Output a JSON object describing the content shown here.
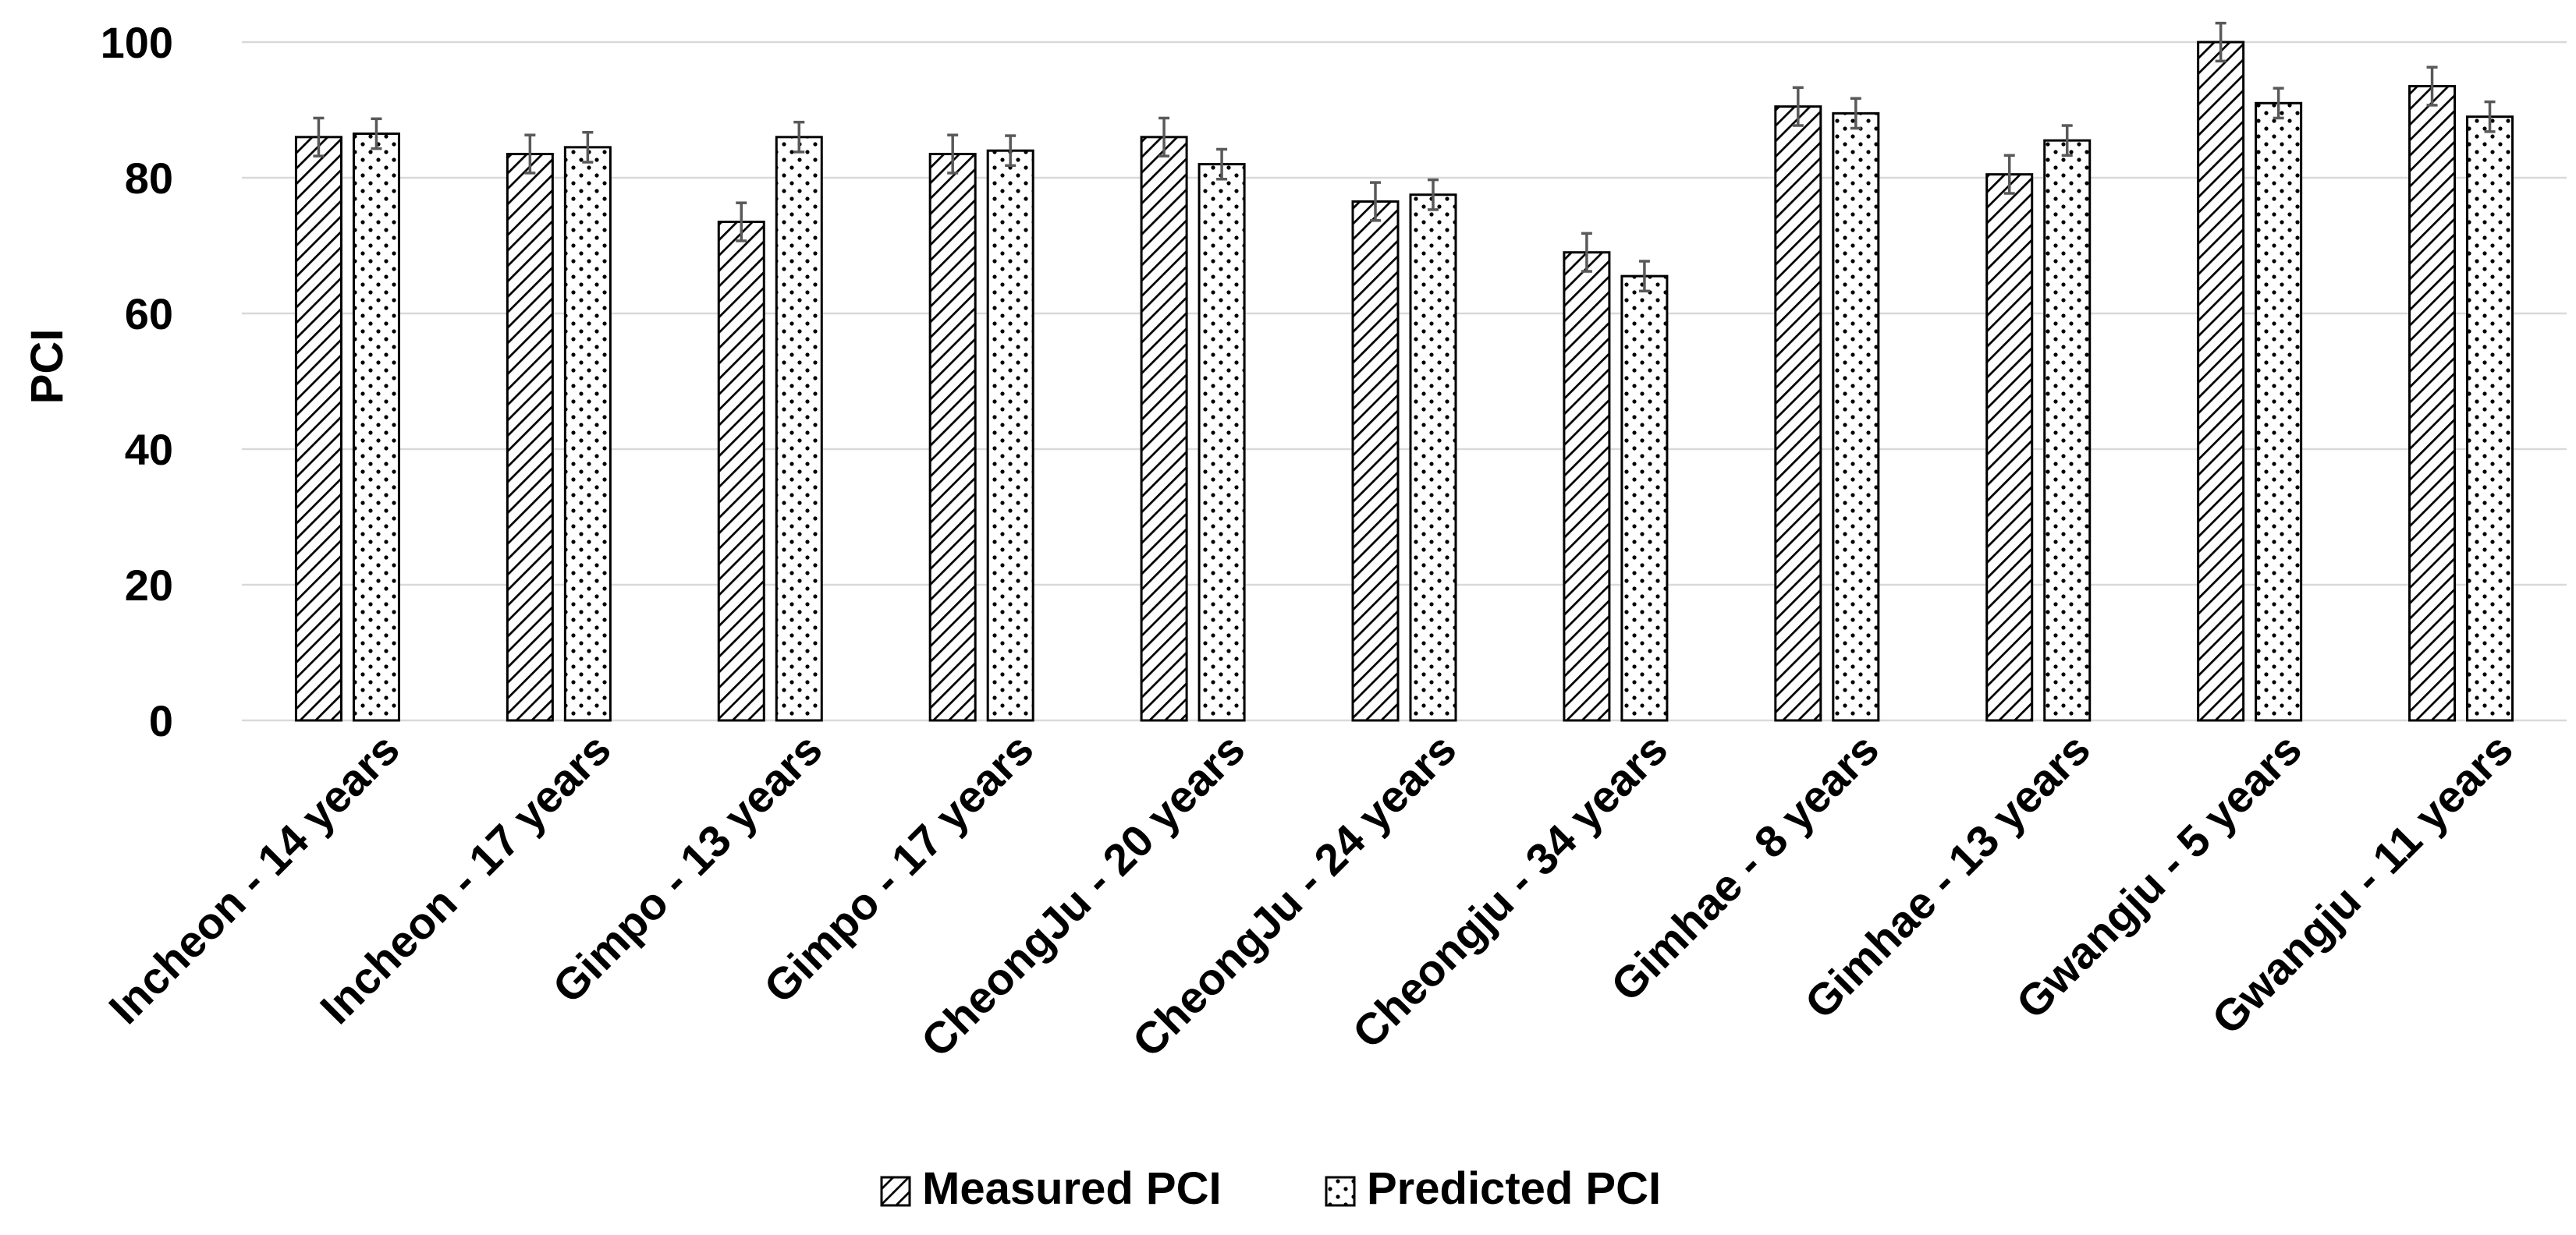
{
  "chart_data": {
    "type": "bar",
    "title": "",
    "xlabel": "",
    "ylabel": "PCI",
    "ylim": [
      0,
      100
    ],
    "yticks": [
      0,
      20,
      40,
      60,
      80,
      100
    ],
    "grid": true,
    "legend_position": "bottom",
    "categories": [
      "Incheon - 14 years",
      "Incheon - 17 years",
      "Gimpo - 13 years",
      "Gimpo - 17 years",
      "CheongJu - 20 years",
      "CheongJu - 24 years",
      "Cheongju - 34 years",
      "Gimhae - 8 years",
      "Gimhae - 13 years",
      "Gwangju - 5 years",
      "Gwangju - 11 years"
    ],
    "series": [
      {
        "name": "Measured PCI",
        "pattern": "diagonal-hatch",
        "values": [
          86,
          83.5,
          73.5,
          83.5,
          86,
          76.5,
          69,
          90.5,
          80.5,
          100,
          93.5
        ],
        "error": [
          2.8,
          2.8,
          2.8,
          2.8,
          2.8,
          2.8,
          2.8,
          2.8,
          2.8,
          2.8,
          2.8
        ]
      },
      {
        "name": "Predicted PCI",
        "pattern": "dots",
        "values": [
          86.5,
          84.5,
          86,
          84,
          82,
          77.5,
          65.5,
          89.5,
          85.5,
          91,
          89
        ],
        "error": [
          2.2,
          2.2,
          2.2,
          2.2,
          2.2,
          2.2,
          2.2,
          2.2,
          2.2,
          2.2,
          2.2
        ]
      }
    ]
  },
  "colors": {
    "bar_stroke": "#000000",
    "hatch": "#000000",
    "gridline": "#d9d9d9",
    "error_bar": "#595959",
    "background": "#ffffff"
  }
}
